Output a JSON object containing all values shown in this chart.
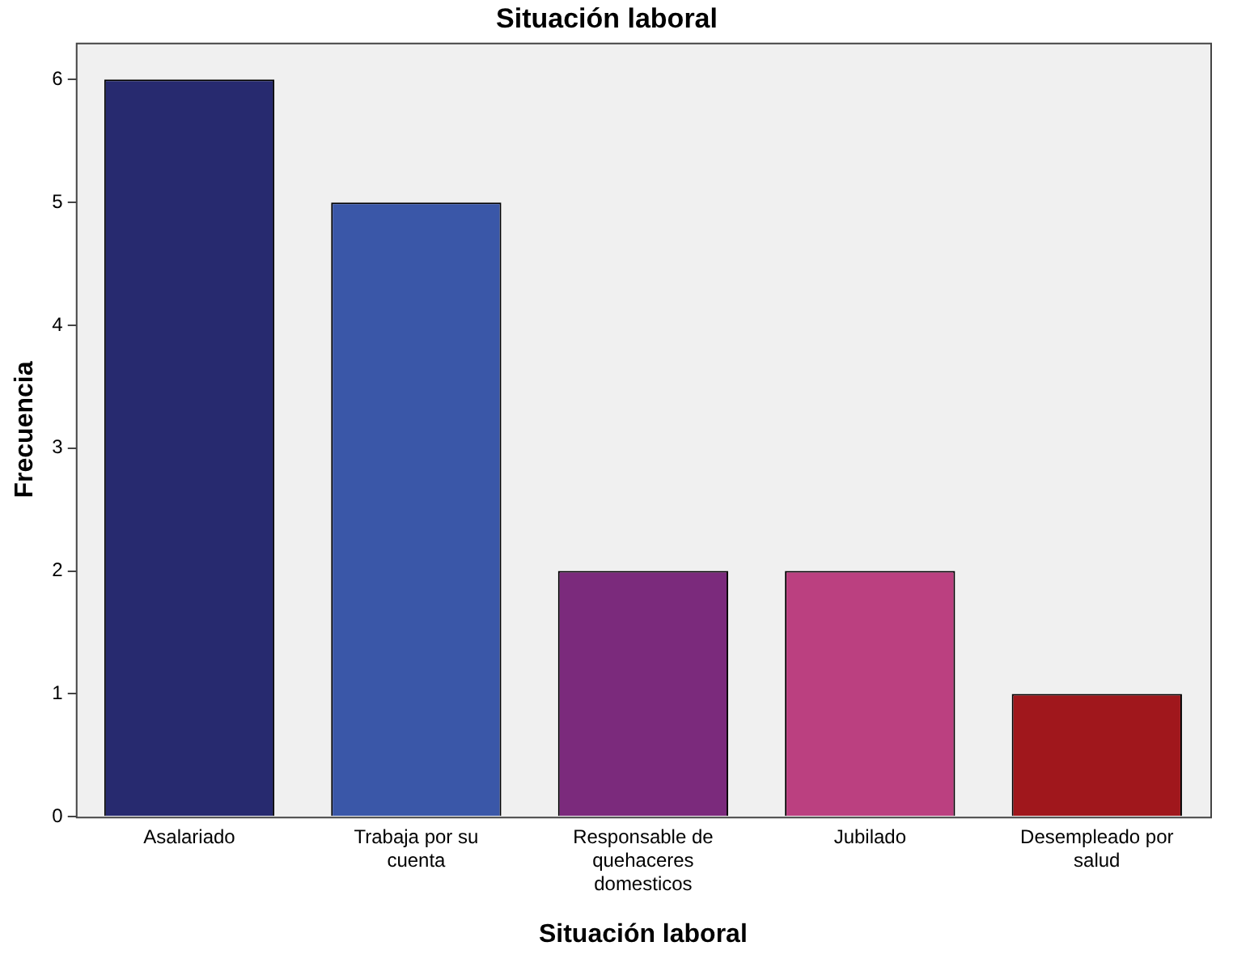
{
  "chart_data": {
    "type": "bar",
    "title": "Situación laboral",
    "xlabel": "Situación laboral",
    "ylabel": "Frecuencia",
    "categories": [
      "Asalariado",
      "Trabaja por su cuenta",
      "Responsable de quehaceres domesticos",
      "Jubilado",
      "Desempleado por salud"
    ],
    "values": [
      6,
      5,
      2,
      2,
      1
    ],
    "colors": [
      "#272a6f",
      "#3a57a8",
      "#7b2a7c",
      "#bb4080",
      "#a0171c"
    ],
    "ylim": [
      0,
      6.3
    ],
    "yticks": [
      0,
      1,
      2,
      3,
      4,
      5,
      6
    ],
    "grid": false,
    "legend": false
  }
}
